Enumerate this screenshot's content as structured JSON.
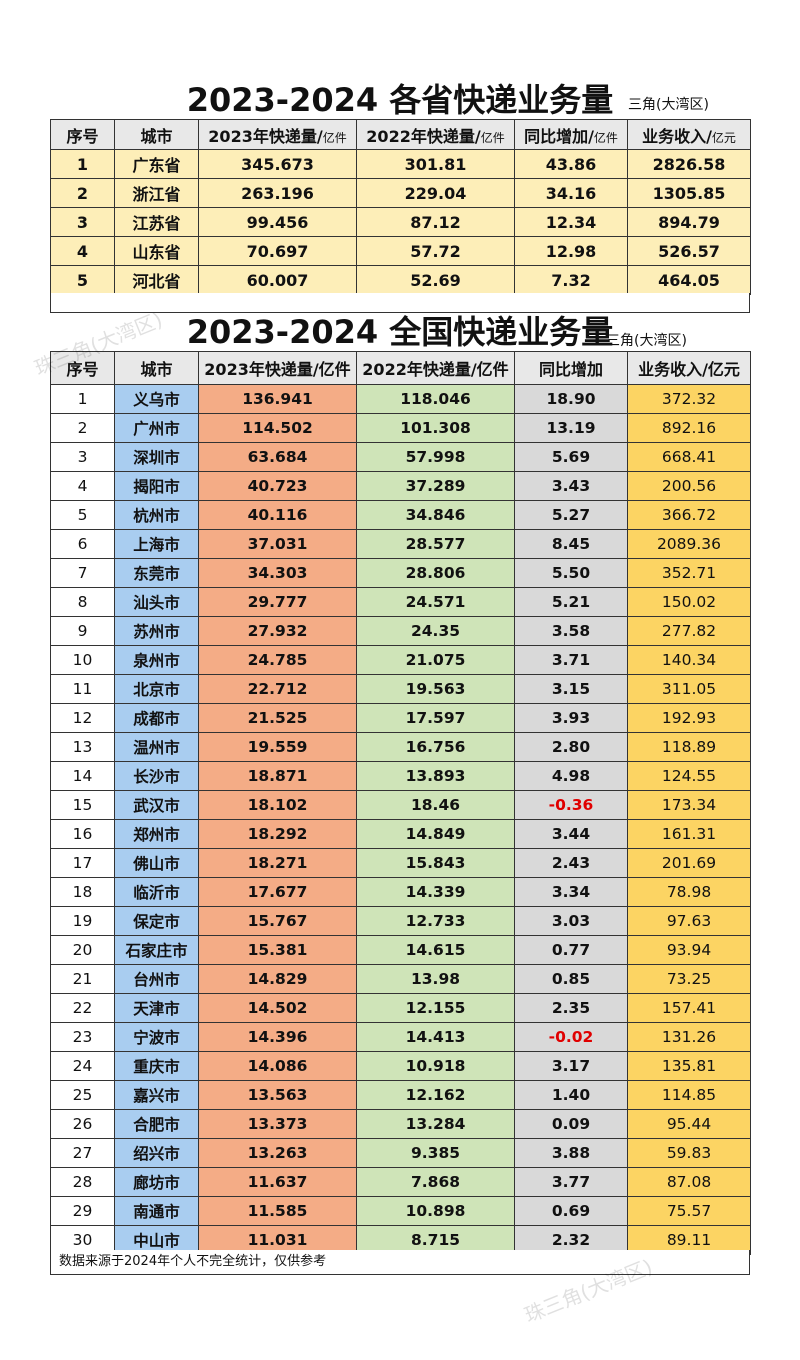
{
  "section1": {
    "title": "2023-2024 各省快递业务量",
    "byline": "三角(大湾区)",
    "headers": [
      {
        "main": "序号",
        "unit": ""
      },
      {
        "main": "城市",
        "unit": ""
      },
      {
        "main": "2023年快递量/",
        "unit": "亿件"
      },
      {
        "main": "2022年快递量/",
        "unit": "亿件"
      },
      {
        "main": "同比增加/",
        "unit": "亿件"
      },
      {
        "main": "业务收入/",
        "unit": "亿元"
      }
    ],
    "rows": [
      [
        "1",
        "广东省",
        "345.673",
        "301.81",
        "43.86",
        "2826.58"
      ],
      [
        "2",
        "浙江省",
        "263.196",
        "229.04",
        "34.16",
        "1305.85"
      ],
      [
        "3",
        "江苏省",
        "99.456",
        "87.12",
        "12.34",
        "894.79"
      ],
      [
        "4",
        "山东省",
        "70.697",
        "57.72",
        "12.98",
        "526.57"
      ],
      [
        "5",
        "河北省",
        "60.007",
        "52.69",
        "7.32",
        "464.05"
      ]
    ]
  },
  "section2": {
    "title": "2023-2024 全国快递业务量",
    "byline": "三角(大湾区)",
    "headers": [
      "序号",
      "城市",
      "2023年快递量/亿件",
      "2022年快递量/亿件",
      "同比增加",
      "业务收入/亿元"
    ],
    "rows": [
      [
        "1",
        "义乌市",
        "136.941",
        "118.046",
        "18.90",
        "372.32"
      ],
      [
        "2",
        "广州市",
        "114.502",
        "101.308",
        "13.19",
        "892.16"
      ],
      [
        "3",
        "深圳市",
        "63.684",
        "57.998",
        "5.69",
        "668.41"
      ],
      [
        "4",
        "揭阳市",
        "40.723",
        "37.289",
        "3.43",
        "200.56"
      ],
      [
        "5",
        "杭州市",
        "40.116",
        "34.846",
        "5.27",
        "366.72"
      ],
      [
        "6",
        "上海市",
        "37.031",
        "28.577",
        "8.45",
        "2089.36"
      ],
      [
        "7",
        "东莞市",
        "34.303",
        "28.806",
        "5.50",
        "352.71"
      ],
      [
        "8",
        "汕头市",
        "29.777",
        "24.571",
        "5.21",
        "150.02"
      ],
      [
        "9",
        "苏州市",
        "27.932",
        "24.35",
        "3.58",
        "277.82"
      ],
      [
        "10",
        "泉州市",
        "24.785",
        "21.075",
        "3.71",
        "140.34"
      ],
      [
        "11",
        "北京市",
        "22.712",
        "19.563",
        "3.15",
        "311.05"
      ],
      [
        "12",
        "成都市",
        "21.525",
        "17.597",
        "3.93",
        "192.93"
      ],
      [
        "13",
        "温州市",
        "19.559",
        "16.756",
        "2.80",
        "118.89"
      ],
      [
        "14",
        "长沙市",
        "18.871",
        "13.893",
        "4.98",
        "124.55"
      ],
      [
        "15",
        "武汉市",
        "18.102",
        "18.46",
        "-0.36",
        "173.34"
      ],
      [
        "16",
        "郑州市",
        "18.292",
        "14.849",
        "3.44",
        "161.31"
      ],
      [
        "17",
        "佛山市",
        "18.271",
        "15.843",
        "2.43",
        "201.69"
      ],
      [
        "18",
        "临沂市",
        "17.677",
        "14.339",
        "3.34",
        "78.98"
      ],
      [
        "19",
        "保定市",
        "15.767",
        "12.733",
        "3.03",
        "97.63"
      ],
      [
        "20",
        "石家庄市",
        "15.381",
        "14.615",
        "0.77",
        "93.94"
      ],
      [
        "21",
        "台州市",
        "14.829",
        "13.98",
        "0.85",
        "73.25"
      ],
      [
        "22",
        "天津市",
        "14.502",
        "12.155",
        "2.35",
        "157.41"
      ],
      [
        "23",
        "宁波市",
        "14.396",
        "14.413",
        "-0.02",
        "131.26"
      ],
      [
        "24",
        "重庆市",
        "14.086",
        "10.918",
        "3.17",
        "135.81"
      ],
      [
        "25",
        "嘉兴市",
        "13.563",
        "12.162",
        "1.40",
        "114.85"
      ],
      [
        "26",
        "合肥市",
        "13.373",
        "13.284",
        "0.09",
        "95.44"
      ],
      [
        "27",
        "绍兴市",
        "13.263",
        "9.385",
        "3.88",
        "59.83"
      ],
      [
        "28",
        "廊坊市",
        "11.637",
        "7.868",
        "3.77",
        "87.08"
      ],
      [
        "29",
        "南通市",
        "11.585",
        "10.898",
        "0.69",
        "75.57"
      ],
      [
        "30",
        "中山市",
        "11.031",
        "8.715",
        "2.32",
        "89.11"
      ]
    ],
    "note": "数据来源于2024年个人不完全统计，仅供参考"
  },
  "watermark": "珠三角(大湾区)",
  "colors": {
    "province_row": "#fdeeb8",
    "city_col": "#a9cdf0",
    "v2023_col": "#f4ac86",
    "v2022_col": "#cfe4b8",
    "yoy_col": "#d9d9d9",
    "revenue_col": "#fcd463",
    "negative_text": "#e00000"
  }
}
